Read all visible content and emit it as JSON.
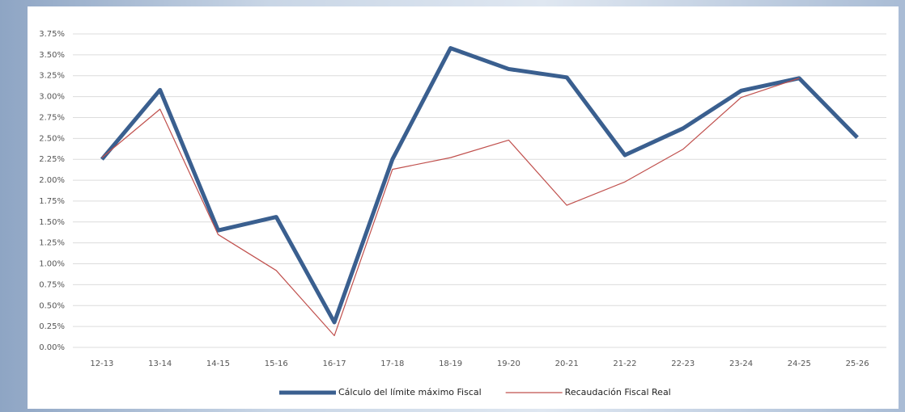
{
  "chart_data": {
    "type": "line",
    "categories": [
      "12-13",
      "13-14",
      "14-15",
      "15-16",
      "16-17",
      "17-18",
      "18-19",
      "19-20",
      "20-21",
      "21-22",
      "22-23",
      "23-24",
      "24-25",
      "25-26"
    ],
    "series": [
      {
        "name": "Cálculo del límite máximo Fiscal",
        "color": "#3a5f8f",
        "width": 5,
        "values": [
          2.25,
          3.08,
          1.4,
          1.56,
          0.3,
          2.25,
          3.58,
          3.33,
          3.23,
          2.3,
          2.62,
          3.07,
          3.22,
          2.51
        ]
      },
      {
        "name": "Recaudación Fiscal Real",
        "color": "#c0504d",
        "width": 1.2,
        "values": [
          2.27,
          2.85,
          1.35,
          0.92,
          0.14,
          2.13,
          2.27,
          2.48,
          1.7,
          1.98,
          2.37,
          2.99,
          3.22,
          null
        ]
      }
    ],
    "ylim": [
      0,
      3.75
    ],
    "yticks": [
      {
        "value": 0,
        "label": "0.00%"
      },
      {
        "value": 0.25,
        "label": "0.25%"
      },
      {
        "value": 0.5,
        "label": "0.50%"
      },
      {
        "value": 0.75,
        "label": "0.75%"
      },
      {
        "value": 1,
        "label": "1.00%"
      },
      {
        "value": 1.25,
        "label": "1.25%"
      },
      {
        "value": 1.5,
        "label": "1.50%"
      },
      {
        "value": 1.75,
        "label": "1.75%"
      },
      {
        "value": 2,
        "label": "2.00%"
      },
      {
        "value": 2.25,
        "label": "2.25%"
      },
      {
        "value": 2.5,
        "label": "2.50%"
      },
      {
        "value": 2.75,
        "label": "2.75%"
      },
      {
        "value": 3,
        "label": "3.00%"
      },
      {
        "value": 3.25,
        "label": "3.25%"
      },
      {
        "value": 3.5,
        "label": "3.50%"
      },
      {
        "value": 3.75,
        "label": "3.75%"
      }
    ],
    "grid": true,
    "legend": "bottom"
  }
}
